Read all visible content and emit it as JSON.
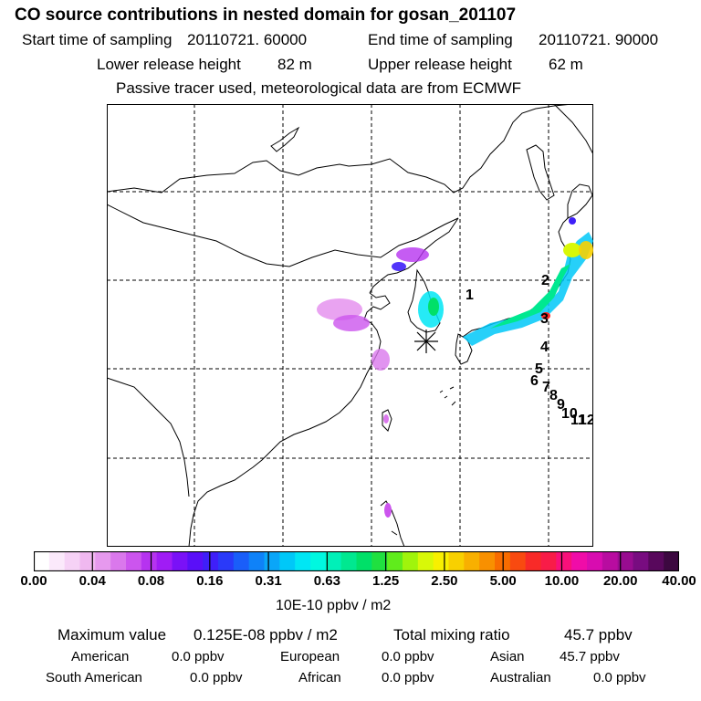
{
  "header": {
    "title": "CO  source contributions in nested domain for gosan_201107",
    "start_label": "Start time of sampling",
    "start_value": "20110721. 60000",
    "end_label": "End time of sampling",
    "end_value": "20110721. 90000",
    "lower_label": "Lower release height",
    "lower_value": "82 m",
    "upper_label": "Upper release height",
    "upper_value": "62 m",
    "note": "Passive tracer used, meteorological data are from ECMWF"
  },
  "map": {
    "markers": [
      "1",
      "2",
      "3",
      "4",
      "5",
      "6",
      "7",
      "8",
      "9",
      "10",
      "11",
      "12"
    ],
    "receptor_symbol": "asterisk"
  },
  "colorbar": {
    "tick_labels": [
      "0.00",
      "0.04",
      "0.08",
      "0.16",
      "0.31",
      "0.63",
      "1.25",
      "2.50",
      "5.00",
      "10.00",
      "20.00",
      "40.00"
    ],
    "colors": [
      "#ffffff",
      "#fbe9fb",
      "#f6d2f6",
      "#f0b8f0",
      "#e699ee",
      "#da78ec",
      "#cc55ee",
      "#b633f0",
      "#a01cf5",
      "#7a11f7",
      "#5a0ff8",
      "#3f1ff9",
      "#2a3af9",
      "#1a5ef9",
      "#0f82f8",
      "#0aa6f8",
      "#00c8f8",
      "#00e6f4",
      "#00f8e0",
      "#00f0b8",
      "#00e890",
      "#00e068",
      "#20e040",
      "#60ec1c",
      "#a0f40c",
      "#d8f808",
      "#f8f000",
      "#f8d000",
      "#f8b000",
      "#f89000",
      "#f86c00",
      "#f84a10",
      "#f82a28",
      "#f81c48",
      "#f8107a",
      "#f00ca8",
      "#d80cb0",
      "#b80ca0",
      "#980c90",
      "#780c80",
      "#58085c",
      "#3c0840"
    ],
    "units": "10E-10 ppbv / m2"
  },
  "stats": {
    "max_label": "Maximum value",
    "max_value": "0.125E-08 ppbv / m2",
    "total_label": "Total mixing ratio",
    "total_value": "45.7 ppbv",
    "regions": [
      {
        "name": "American",
        "value": "0.0 ppbv"
      },
      {
        "name": "European",
        "value": "0.0 ppbv"
      },
      {
        "name": "Asian",
        "value": "45.7 ppbv"
      },
      {
        "name": "South American",
        "value": "0.0 ppbv"
      },
      {
        "name": "African",
        "value": "0.0 ppbv"
      },
      {
        "name": "Australian",
        "value": "0.0 ppbv"
      }
    ]
  }
}
